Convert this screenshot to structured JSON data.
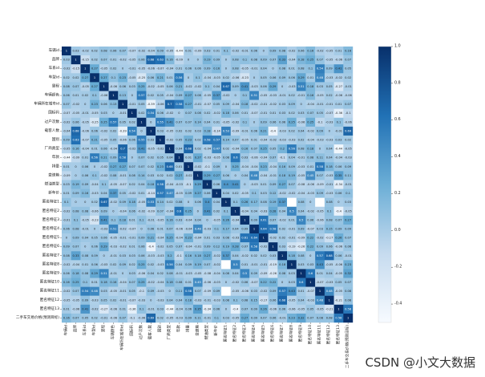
{
  "chart_data": {
    "type": "heatmap",
    "title": "",
    "xlabel": "",
    "ylabel": "",
    "row_labels": [
      "车辆id",
      "品牌",
      "车系id",
      "车型id",
      "里程",
      "车辆颜色",
      "车辆所在城市id",
      "国标码",
      "过户次数",
      "载客人数",
      "国别",
      "厂商类型",
      "年款",
      "排量",
      "变速箱",
      "燃油类型",
      "新车价",
      "匿名特征1",
      "匿名特征2",
      "匿名特征3",
      "匿名特征4",
      "匿名特征5",
      "匿名特征6",
      "匿名特征7",
      "匿名特征8",
      "匿名特征9",
      "匿名特征10",
      "匿名特征11",
      "匿名特征12",
      "匿名特征13",
      "二手车交易价格(预测目标)"
    ],
    "col_labels": [
      "车辆id",
      "品牌",
      "车系id",
      "车型id",
      "里程",
      "车辆颜色",
      "车辆所在城市id",
      "国标码",
      "过户次数",
      "载客人数",
      "国别",
      "厂商类型",
      "年款",
      "排量",
      "变速箱",
      "燃油类型",
      "新车价",
      "匿名特征1",
      "匿名特征2",
      "匿名特征3",
      "匿名特征4",
      "匿名特征5",
      "匿名特征6",
      "匿名特征7",
      "匿名特征8",
      "匿名特征9",
      "匿名特征10",
      "匿名特征11",
      "匿名特征12",
      "匿名特征13",
      "二手车交易价格(预测目标)"
    ],
    "colorbar": {
      "min": -0.5,
      "max": 1.0,
      "ticks": [
        "1.0",
        "0.8",
        "0.6",
        "0.4",
        "0.2",
        "0.0",
        "-0.2",
        "-0.4"
      ],
      "colors": [
        "#f7fbff",
        "#c6dbef",
        "#6baed6",
        "#2171b5",
        "#08306b"
      ]
    },
    "missing_cells": [
      [
        17,
        27
      ],
      [
        27,
        17
      ],
      [
        24,
        17
      ],
      [
        17,
        24
      ]
    ],
    "values_note_seed": 7
  },
  "watermark": "CSDN @小文大数据"
}
